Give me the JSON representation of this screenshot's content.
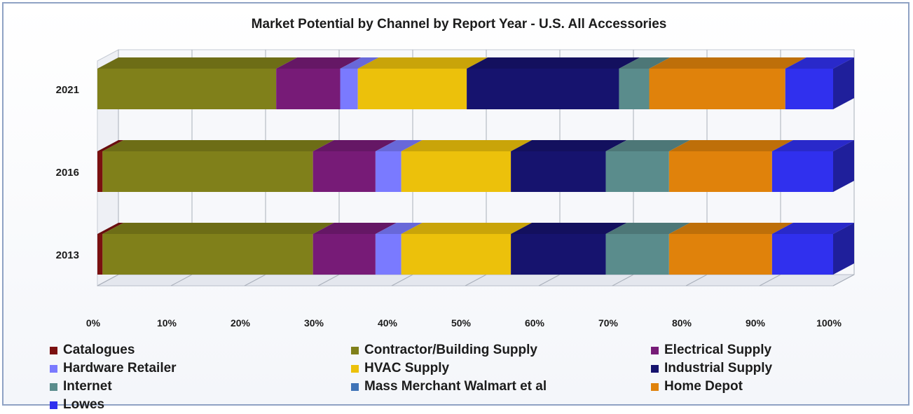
{
  "chart_data": {
    "type": "bar",
    "orientation": "horizontal",
    "stacking": "percent",
    "style": "3d",
    "title": "Market Potential by Channel by Report Year - U.S. All Accessories",
    "categories": [
      "2021",
      "2016",
      "2013"
    ],
    "xlim": [
      0,
      100
    ],
    "x_ticks": [
      "0%",
      "10%",
      "20%",
      "30%",
      "40%",
      "50%",
      "60%",
      "70%",
      "80%",
      "90%",
      "100%"
    ],
    "grid": true,
    "legend_position": "bottom",
    "series": [
      {
        "name": "Catalogues",
        "color": "#7b1010",
        "values": [
          0,
          0.7,
          0.7
        ]
      },
      {
        "name": "Contractor/Building Supply",
        "color": "#80801a",
        "values": [
          24.3,
          28.6,
          28.6
        ]
      },
      {
        "name": "Electrical Supply",
        "color": "#771b77",
        "values": [
          8.7,
          8.5,
          8.5
        ]
      },
      {
        "name": "Hardware Retailer",
        "color": "#7a7aff",
        "values": [
          2.4,
          3.5,
          3.5
        ]
      },
      {
        "name": "HVAC Supply",
        "color": "#ecc10b",
        "values": [
          14.8,
          14.9,
          14.9
        ]
      },
      {
        "name": "Industrial Supply",
        "color": "#16136e",
        "values": [
          20.7,
          12.9,
          12.9
        ]
      },
      {
        "name": "Internet",
        "color": "#5a8c8c",
        "values": [
          4.1,
          8.6,
          8.6
        ]
      },
      {
        "name": "Mass Merchant Walmart et al",
        "color": "#3f73b7",
        "values": [
          0,
          0,
          0
        ]
      },
      {
        "name": "Home Depot",
        "color": "#e0820b",
        "values": [
          18.5,
          14.0,
          14.0
        ]
      },
      {
        "name": "Lowes",
        "color": "#3030ee",
        "values": [
          6.5,
          8.3,
          8.3
        ]
      }
    ]
  }
}
